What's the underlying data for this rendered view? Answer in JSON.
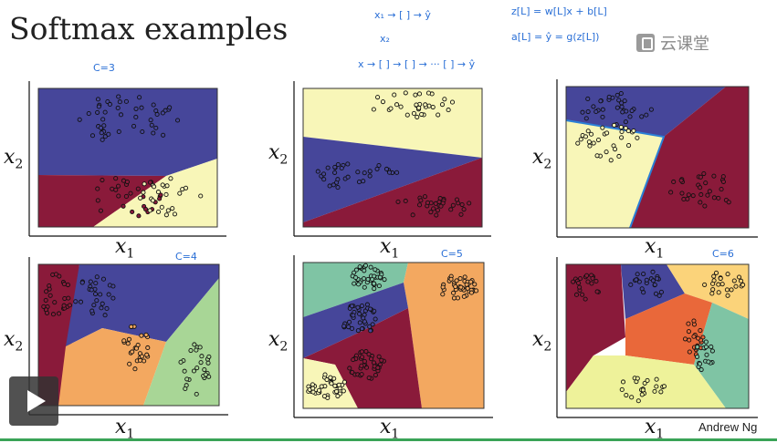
{
  "title": "Softmax examples",
  "watermark": "云课堂",
  "credit": "Andrew Ng",
  "axis": {
    "x": "x",
    "y": "x",
    "sub": "1",
    "sub_y": "2"
  },
  "annotations": {
    "c3": "C=3",
    "c4": "C=4",
    "c5": "C=5",
    "c6": "C=6",
    "net1": "x₁ → [ ] → ŷ",
    "net2": "x₂",
    "net3": "x → [ ] → [ ] → ··· [ ] → ŷ",
    "eq1": "z[L] = w[L]x + b[L]",
    "eq2": "a[L] = ŷ = g(z[L])"
  },
  "colors": {
    "blue": "#46469a",
    "red": "#8a1a3a",
    "yellow": "#f8f6b8",
    "orange": "#f3a860",
    "green": "#a8d696",
    "teal": "#7fc4a4",
    "deep_orange": "#e9683a",
    "lime": "#eef29a",
    "light_orange": "#fbd37a"
  },
  "panels": [
    {
      "name": "softmax-c3-a",
      "classes": 3
    },
    {
      "name": "softmax-c3-b",
      "classes": 3
    },
    {
      "name": "softmax-c3-c",
      "classes": 3
    },
    {
      "name": "softmax-c4",
      "classes": 4
    },
    {
      "name": "softmax-c5",
      "classes": 5
    },
    {
      "name": "softmax-c6",
      "classes": 6
    }
  ]
}
